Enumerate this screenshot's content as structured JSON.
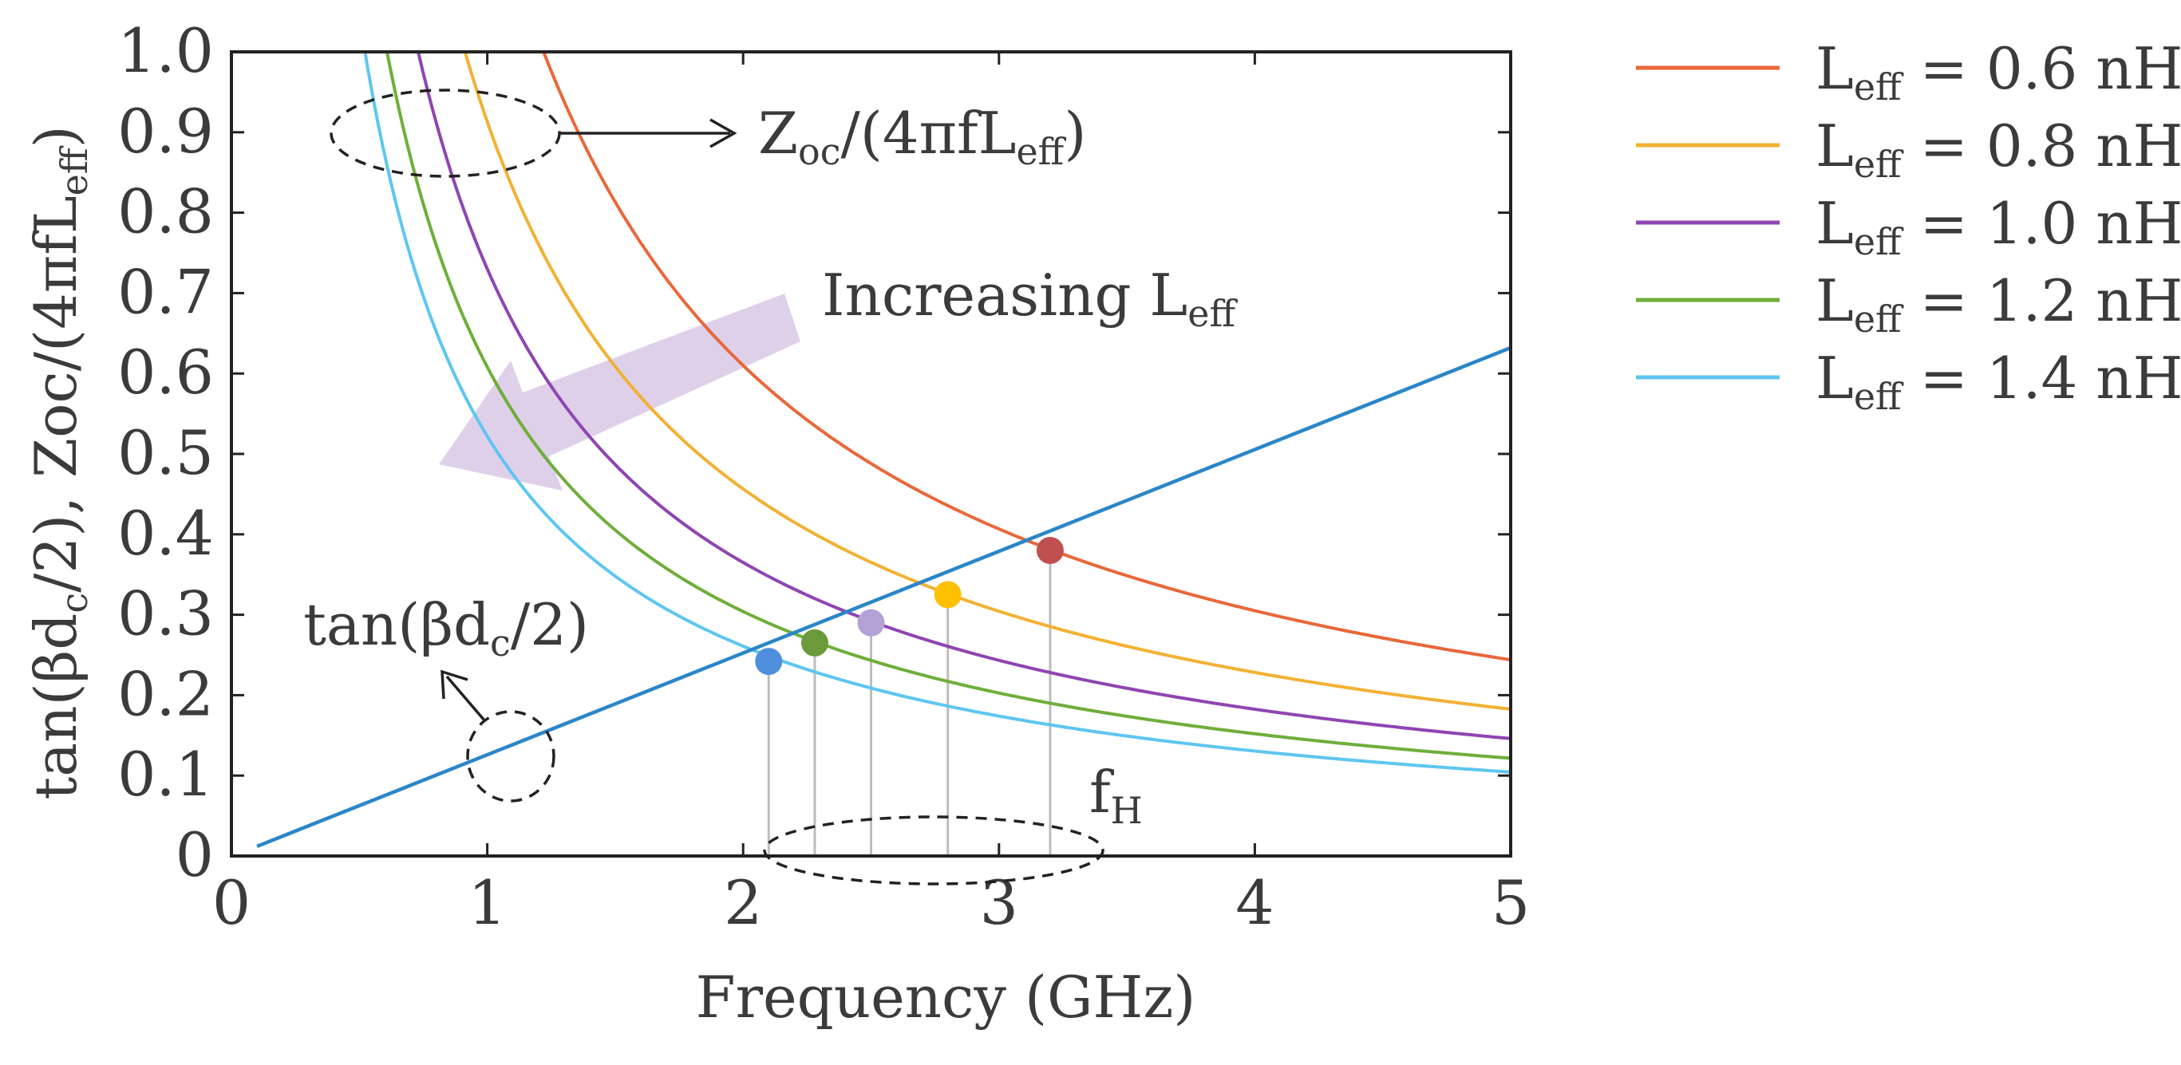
{
  "chart_data": {
    "type": "line",
    "xlabel": "Frequency (GHz)",
    "ylabel": {
      "main": "tan(βd",
      "sub1": "c",
      "mid": "/2), Zoc/(4πfL",
      "sub2": "eff",
      "end": ")"
    },
    "xlim": [
      0,
      5
    ],
    "ylim": [
      0,
      1.0
    ],
    "x_ticks": [
      "0",
      "1",
      "2",
      "3",
      "4",
      "5"
    ],
    "y_ticks": [
      "0",
      "0.1",
      "0.2",
      "0.3",
      "0.4",
      "0.5",
      "0.6",
      "0.7",
      "0.8",
      "0.9",
      "1.0"
    ],
    "grid": false,
    "legend_position": "outside-right",
    "line_series": {
      "name": "tan(βdc/2)",
      "color": "#2a86c8",
      "x": [
        0.1,
        5.0
      ],
      "y": [
        0.012,
        0.632
      ]
    },
    "series": [
      {
        "legend_pre": "L",
        "legend_sub": "eff",
        "legend_post": " = 0.6 nH",
        "color": "#e8683a",
        "k": 1.22
      },
      {
        "legend_pre": "L",
        "legend_sub": "eff",
        "legend_post": " = 0.8 nH",
        "color": "#f2b134",
        "k": 0.913
      },
      {
        "legend_pre": "L",
        "legend_sub": "eff",
        "legend_post": " = 1.0 nH",
        "color": "#8f45b2",
        "k": 0.73
      },
      {
        "legend_pre": "L",
        "legend_sub": "eff",
        "legend_post": " = 1.2 nH",
        "color": "#6fae3a",
        "k": 0.608
      },
      {
        "legend_pre": "L",
        "legend_sub": "eff",
        "legend_post": " = 1.4 nH",
        "color": "#5ec6f0",
        "k": 0.522
      }
    ],
    "intersections": [
      {
        "x": 3.2,
        "y": 0.38,
        "color": "#c0504d"
      },
      {
        "x": 2.8,
        "y": 0.325,
        "color": "#ffc000"
      },
      {
        "x": 2.5,
        "y": 0.29,
        "color": "#b4a1d6"
      },
      {
        "x": 2.28,
        "y": 0.265,
        "color": "#6b9a3a"
      },
      {
        "x": 2.1,
        "y": 0.242,
        "color": "#4f8fdc"
      }
    ],
    "annotations": {
      "zoc": {
        "pre": "Z",
        "sub1": "oc",
        "mid": "/(4πfL",
        "sub2": "eff",
        "end": ")"
      },
      "increasing": {
        "pre": "Increasing L",
        "sub": "eff"
      },
      "tan": {
        "pre": "tan(βd",
        "sub": "c",
        "end": "/2)"
      },
      "fh": {
        "pre": "f",
        "sub": "H"
      }
    }
  },
  "colors": {
    "axis": "#222222",
    "text": "#3b3b3b",
    "arrow_fill": "#d9c8e6",
    "drop_lines": "#bdbdbd"
  }
}
